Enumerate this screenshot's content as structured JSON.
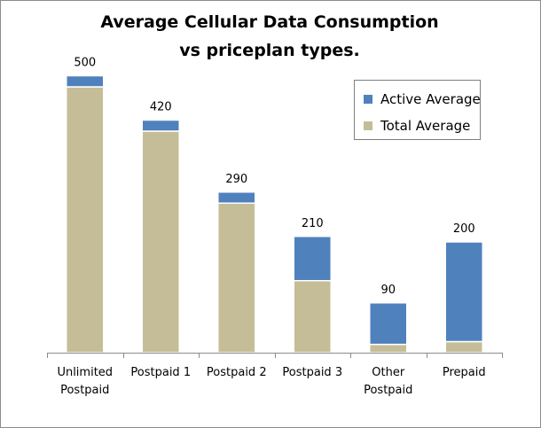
{
  "chart_data": {
    "type": "bar",
    "stacked": true,
    "title_line1": "Average Cellular Data Consumption",
    "title_line2": "vs priceplan types.",
    "categories": [
      [
        "Unlimited",
        "Postpaid"
      ],
      [
        "Postpaid 1"
      ],
      [
        "Postpaid 2"
      ],
      [
        "Postpaid 3"
      ],
      [
        "Other",
        "Postpaid"
      ],
      [
        "Prepaid"
      ]
    ],
    "series": [
      {
        "name": "Total Average",
        "color": "#c4bd97",
        "values": [
          480,
          400,
          270,
          130,
          15,
          20
        ]
      },
      {
        "name": "Active Average",
        "color": "#4f81bd",
        "values": [
          20,
          20,
          20,
          80,
          75,
          180
        ]
      }
    ],
    "data_labels": [
      "500",
      "420",
      "290",
      "210",
      "90",
      "200"
    ],
    "legend": {
      "position": "top-right",
      "items": [
        {
          "label": "Active Average",
          "color": "#4f81bd"
        },
        {
          "label": "Total Average",
          "color": "#c4bd97"
        }
      ]
    },
    "ylim": [
      0,
      520
    ],
    "grid": false
  }
}
